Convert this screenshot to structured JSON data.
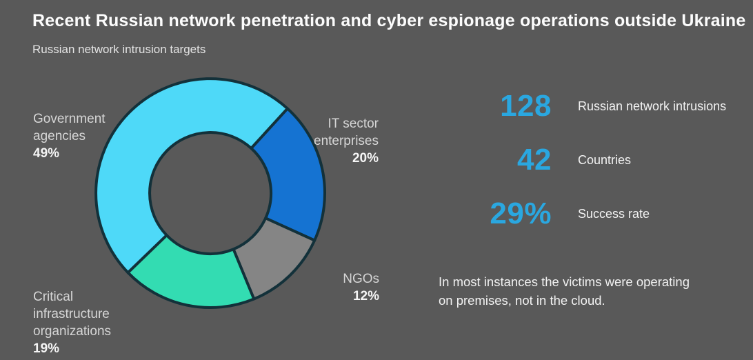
{
  "title": "Recent Russian network penetration and cyber espionage operations outside Ukraine",
  "subtitle": "Russian network intrusion targets",
  "colors": {
    "background": "#595959",
    "accent_blue": "#2aa7e0",
    "segment_outline": "#13313a",
    "title_text": "#fcfcfc",
    "label_text": "#d6d6d6"
  },
  "chart_data": {
    "type": "pie",
    "subtype": "donut",
    "title": "Russian network intrusion targets",
    "start_angle_deg": 226,
    "legend_position": "around-chart",
    "categories": [
      "Government agencies",
      "IT sector enterprises",
      "NGOs",
      "Critical infrastructure organizations"
    ],
    "values": [
      49,
      20,
      12,
      19
    ],
    "unit": "%",
    "segments": [
      {
        "label": "Government\nagencies",
        "percent": "49%",
        "value": 49,
        "color": "#4ed9f8"
      },
      {
        "label": "IT sector\nenterprises",
        "percent": "20%",
        "value": 20,
        "color": "#1573d2"
      },
      {
        "label": "NGOs",
        "percent": "12%",
        "value": 12,
        "color": "#858585"
      },
      {
        "label": "Critical\ninfrastructure\norganizations",
        "percent": "19%",
        "value": 19,
        "color": "#33dcb2"
      }
    ]
  },
  "stats": [
    {
      "value": "128",
      "label": "Russian network intrusions"
    },
    {
      "value": "42",
      "label": "Countries"
    },
    {
      "value": "29%",
      "label": "Success rate"
    }
  ],
  "note": "In most instances the victims were operating on premises, not in the cloud."
}
